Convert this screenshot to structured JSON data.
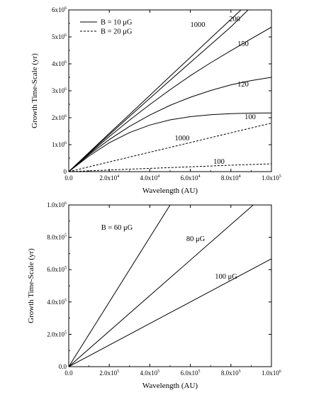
{
  "chart_data": [
    {
      "type": "line",
      "xlabel": "Wavelength (AU)",
      "ylabel": "Growth Time-Scale (yr)",
      "xlim": [
        0,
        100000
      ],
      "ylim": [
        0,
        6000000
      ],
      "x_ticks": [
        0,
        20000,
        40000,
        60000,
        80000,
        100000
      ],
      "x_tick_labels": [
        "0.0",
        "2.0x10",
        "4.0x10",
        "6.0x10",
        "8.0x10",
        "1.0x10"
      ],
      "x_tick_exponents": [
        "",
        "4",
        "4",
        "4",
        "4",
        "5"
      ],
      "y_ticks": [
        0,
        1000000,
        2000000,
        3000000,
        4000000,
        5000000,
        6000000
      ],
      "y_tick_labels": [
        "0",
        "1x10",
        "2x10",
        "3x10",
        "4x10",
        "5x10",
        "6x10"
      ],
      "y_tick_exponents": [
        "",
        "6",
        "6",
        "6",
        "6",
        "6",
        "6"
      ],
      "legend": {
        "position": "top-left",
        "entries": [
          {
            "label": "B = 10 μG",
            "style": "solid"
          },
          {
            "label": "B = 20 μG",
            "style": "dashed"
          }
        ]
      },
      "series": [
        {
          "label": "1000",
          "style": "solid",
          "x": [
            0,
            10000,
            20000,
            30000,
            40000,
            50000,
            60000,
            70000,
            80000,
            85000
          ],
          "y": [
            0,
            710000,
            1420000,
            2120000,
            2830000,
            3540000,
            4240000,
            4950000,
            5650000,
            6000000
          ]
        },
        {
          "label": "200",
          "style": "solid",
          "x": [
            0,
            10000,
            20000,
            30000,
            40000,
            50000,
            60000,
            70000,
            80000,
            88500
          ],
          "y": [
            0,
            690000,
            1370000,
            2050000,
            2720000,
            3390000,
            4050000,
            4710000,
            5370000,
            6000000
          ]
        },
        {
          "label": "150",
          "style": "solid",
          "x": [
            0,
            10000,
            20000,
            30000,
            40000,
            50000,
            60000,
            70000,
            80000,
            90000,
            100000
          ],
          "y": [
            0,
            660000,
            1300000,
            1910000,
            2490000,
            3040000,
            3560000,
            4040000,
            4490000,
            4930000,
            5360000
          ]
        },
        {
          "label": "120",
          "style": "solid",
          "x": [
            0,
            10000,
            20000,
            30000,
            40000,
            50000,
            60000,
            70000,
            80000,
            90000,
            100000
          ],
          "y": [
            0,
            630000,
            1190000,
            1680000,
            2100000,
            2460000,
            2760000,
            3010000,
            3220000,
            3380000,
            3500000
          ]
        },
        {
          "label": "100",
          "style": "solid",
          "x": [
            0,
            10000,
            20000,
            30000,
            40000,
            50000,
            60000,
            70000,
            80000,
            90000,
            100000
          ],
          "y": [
            0,
            580000,
            1070000,
            1450000,
            1730000,
            1920000,
            2040000,
            2110000,
            2150000,
            2170000,
            2180000
          ]
        },
        {
          "label": "1000",
          "style": "dashed",
          "x": [
            0,
            10000,
            20000,
            30000,
            40000,
            50000,
            60000,
            70000,
            80000,
            90000,
            100000
          ],
          "y": [
            0,
            180000,
            360000,
            540000,
            720000,
            900000,
            1080000,
            1260000,
            1440000,
            1620000,
            1800000
          ]
        },
        {
          "label": "100",
          "style": "dashed",
          "x": [
            0,
            20000,
            40000,
            60000,
            80000,
            100000
          ],
          "y": [
            0,
            60000,
            120000,
            180000,
            240000,
            290000
          ]
        }
      ]
    },
    {
      "type": "line",
      "xlabel": "Wavelength (AU)",
      "ylabel": "Growth Time-Scale (yr)",
      "xlim": [
        0,
        1000000
      ],
      "ylim": [
        0,
        1000000
      ],
      "x_ticks": [
        0,
        200000,
        400000,
        600000,
        800000,
        1000000
      ],
      "x_tick_labels": [
        "0.0",
        "2.0x10",
        "4.0x10",
        "6.0x10",
        "8.0x10",
        "1.0x10"
      ],
      "x_tick_exponents": [
        "",
        "5",
        "5",
        "5",
        "5",
        "6"
      ],
      "y_ticks": [
        0,
        200000,
        400000,
        600000,
        800000,
        1000000
      ],
      "y_tick_labels": [
        "0.0",
        "2.0x10",
        "4.0x10",
        "6.0x10",
        "8.0x10",
        "1.0x10"
      ],
      "y_tick_exponents": [
        "",
        "5",
        "5",
        "5",
        "5",
        "6"
      ],
      "series": [
        {
          "label": "B = 60 μG",
          "style": "solid",
          "x": [
            0,
            500000
          ],
          "y": [
            0,
            1000000
          ]
        },
        {
          "label": "80 μG",
          "style": "solid",
          "x": [
            0,
            910000
          ],
          "y": [
            0,
            1000000
          ]
        },
        {
          "label": "100 μG",
          "style": "solid",
          "x": [
            0,
            1000000
          ],
          "y": [
            0,
            667000
          ]
        }
      ]
    }
  ]
}
